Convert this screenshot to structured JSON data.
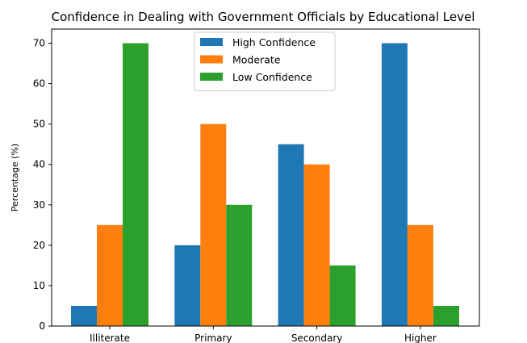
{
  "chart_data": {
    "type": "bar",
    "title": "Confidence in Dealing with Government Officials by Educational Level",
    "xlabel": "",
    "ylabel": "Percentage (%)",
    "categories": [
      "Illiterate",
      "Primary",
      "Secondary",
      "Higher"
    ],
    "series": [
      {
        "name": "High Confidence",
        "color": "#1f77b4",
        "values": [
          5,
          20,
          45,
          70
        ]
      },
      {
        "name": "Moderate",
        "color": "#ff7f0e",
        "values": [
          25,
          50,
          40,
          25
        ]
      },
      {
        "name": "Low Confidence",
        "color": "#2ca02c",
        "values": [
          70,
          30,
          15,
          5
        ]
      }
    ],
    "ylim": [
      0,
      73.5
    ],
    "yticks": [
      0,
      10,
      20,
      30,
      40,
      50,
      60,
      70
    ],
    "grid": false,
    "legend_position": "top-center"
  }
}
